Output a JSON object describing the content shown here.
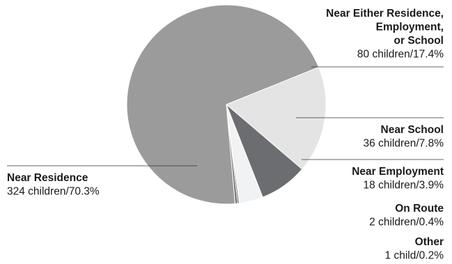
{
  "chart_data": {
    "type": "pie",
    "unit_note": "",
    "slices": [
      {
        "name": "Near Residence",
        "title_lines": [
          "Near Residence"
        ],
        "value": 324,
        "percent": 70.3,
        "value_label": "324 children/70.3%",
        "color": "#9b9b9b"
      },
      {
        "name": "Near Either Residence, Employment, or School",
        "title_lines": [
          "Near Either Residence,",
          "Employment,",
          "or School"
        ],
        "value": 80,
        "percent": 17.4,
        "value_label": "80 children/17.4%",
        "color": "#e4e4e4"
      },
      {
        "name": "Near School",
        "title_lines": [
          "Near School"
        ],
        "value": 36,
        "percent": 7.8,
        "value_label": "36 children/7.8%",
        "color": "#6c6d70"
      },
      {
        "name": "Near Employment",
        "title_lines": [
          "Near Employment"
        ],
        "value": 18,
        "percent": 3.9,
        "value_label": "18 children/3.9%",
        "color": "#f1f2f3"
      },
      {
        "name": "On Route",
        "title_lines": [
          "On Route"
        ],
        "value": 2,
        "percent": 0.4,
        "value_label": "2 children/0.4%",
        "color": "#7a7a7a"
      },
      {
        "name": "Other",
        "title_lines": [
          "Other"
        ],
        "value": 1,
        "percent": 0.2,
        "value_label": "1 child/0.2%",
        "color": "#3a3a3a"
      }
    ]
  }
}
